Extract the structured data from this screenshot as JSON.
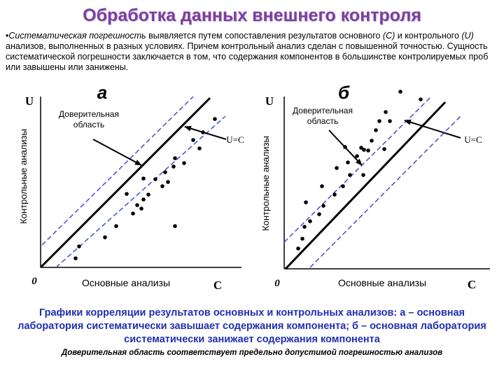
{
  "title": "Обработка данных внешнего  контроля",
  "intro": {
    "bullet": "•",
    "term": "Систематическая погрешность",
    "text_before_c": " выявляется путем сопоставления результатов основного ",
    "c_symbol": "(C)",
    "text_mid": " и контрольного ",
    "u_symbol": "(U)",
    "text_after_u": " анализов, выполненных в разных условиях. Причем контрольный анализ сделан с повышенной точностью. Сущность систематической погрешности заключается в том, что содержания компонентов в большинстве контролируемых проб или завышены или занижены."
  },
  "panel_a": {
    "letter": "а",
    "y_symbol": "U",
    "x_symbol": "C",
    "origin": "0",
    "ylabel": "Контрольные анализы",
    "xlabel": "Основные анализы",
    "line_label": "U=C",
    "region_label_line1": "Доверительная",
    "region_label_line2": "область"
  },
  "panel_b": {
    "letter": "б",
    "y_symbol": "U",
    "x_symbol": "C",
    "origin": "0",
    "ylabel": "Контрольные анализы",
    "xlabel": "Основные анализы",
    "line_label": "U=C",
    "region_label_line1": "Доверительная",
    "region_label_line2": "область"
  },
  "colors": {
    "title": "#7b3fa0",
    "caption": "#1f2fb0",
    "dashed_lines": "#3a4fd6"
  },
  "caption": "Графики корреляции результатов основных и контрольных анализов: а – основная лаборатория систематически завышает содержания компонента; б – основная лаборатория систематически занижает содержания компонента",
  "note": "Доверительная область соответствует предельно допустимой погрешностью анализов"
}
